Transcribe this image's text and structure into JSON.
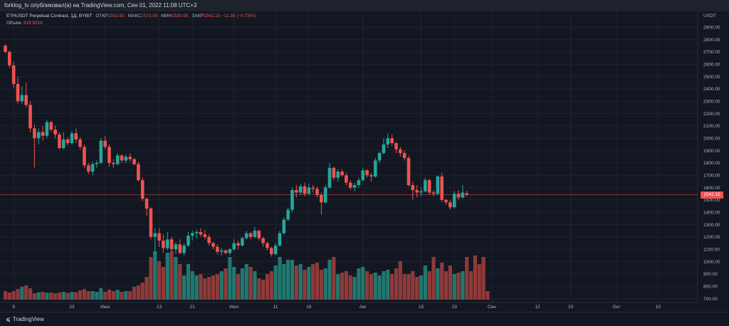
{
  "header": {
    "publisher": "forklog_tv опубликовал(а) на TradingView.com, Сен 01, 2022 11:08 UTC+3"
  },
  "legend": {
    "symbol": "ETHUSDT Perpetual Contract, 1Д, BYBIT",
    "open_label": "ОТКР",
    "open": "1553.50",
    "high_label": "МАКС",
    "high": "1573.00",
    "low_label": "МИН",
    "low": "1530.05",
    "close_label": "ЗАКР",
    "close": "1542.15",
    "change": "−11.35 (−0.73%)",
    "volume_label": "Объём",
    "volume": "419.901K"
  },
  "footer": {
    "brand": "TradingView"
  },
  "colors": {
    "up": "#26a69a",
    "down": "#ef5350",
    "background": "#131722",
    "grid": "#1f2330"
  },
  "chart_data": {
    "type": "candlestick",
    "title": "ETHUSDT Perpetual Contract, 1Д, BYBIT",
    "y_unit": "USDT",
    "y_range": [
      700,
      2950
    ],
    "y_ticks": [
      700,
      800,
      900,
      1000,
      1100,
      1200,
      1300,
      1400,
      1500,
      1600,
      1700,
      1800,
      1900,
      2000,
      2100,
      2200,
      2300,
      2400,
      2500,
      2600,
      2700,
      2800,
      2900
    ],
    "x_ticks": [
      {
        "label": "9",
        "idx": 2
      },
      {
        "label": "23",
        "idx": 16
      },
      {
        "label": "Июн",
        "idx": 24
      },
      {
        "label": "13",
        "idx": 37
      },
      {
        "label": "21",
        "idx": 45
      },
      {
        "label": "Июл",
        "idx": 55
      },
      {
        "label": "11",
        "idx": 65
      },
      {
        "label": "19",
        "idx": 73
      },
      {
        "label": "Авг",
        "idx": 86
      },
      {
        "label": "15",
        "idx": 100
      },
      {
        "label": "23",
        "idx": 108
      },
      {
        "label": "Сен",
        "idx": 117
      },
      {
        "label": "12",
        "idx": 128
      },
      {
        "label": "20",
        "idx": 136
      },
      {
        "label": "Окт",
        "idx": 147
      },
      {
        "label": "10",
        "idx": 157
      }
    ],
    "current_price": 1542.15,
    "ohlc": [
      [
        2750,
        2760,
        2690,
        2700
      ],
      [
        2700,
        2710,
        2570,
        2590
      ],
      [
        2590,
        2620,
        2410,
        2440
      ],
      [
        2440,
        2500,
        2280,
        2300
      ],
      [
        2300,
        2420,
        2280,
        2350
      ],
      [
        2350,
        2450,
        2250,
        2270
      ],
      [
        2270,
        2300,
        2050,
        2080
      ],
      [
        2080,
        2110,
        1760,
        2000
      ],
      [
        2000,
        2080,
        1950,
        2050
      ],
      [
        2050,
        2100,
        1980,
        2020
      ],
      [
        2020,
        2150,
        2000,
        2130
      ],
      [
        2130,
        2140,
        2050,
        2070
      ],
      [
        2070,
        2100,
        2000,
        2030
      ],
      [
        2030,
        2050,
        1910,
        1920
      ],
      [
        1920,
        2050,
        1910,
        1990
      ],
      [
        1990,
        2010,
        1940,
        1960
      ],
      [
        1960,
        2060,
        1950,
        2040
      ],
      [
        2040,
        2080,
        1960,
        1990
      ],
      [
        1990,
        2010,
        1910,
        1930
      ],
      [
        1930,
        1950,
        1760,
        1780
      ],
      [
        1780,
        1800,
        1710,
        1730
      ],
      [
        1730,
        1810,
        1700,
        1790
      ],
      [
        1790,
        1820,
        1760,
        1800
      ],
      [
        1800,
        2000,
        1790,
        1980
      ],
      [
        1980,
        2020,
        1910,
        1930
      ],
      [
        1930,
        1950,
        1770,
        1800
      ],
      [
        1800,
        1830,
        1760,
        1790
      ],
      [
        1790,
        1880,
        1780,
        1860
      ],
      [
        1860,
        1870,
        1800,
        1820
      ],
      [
        1820,
        1870,
        1800,
        1850
      ],
      [
        1850,
        1880,
        1810,
        1830
      ],
      [
        1830,
        1840,
        1780,
        1790
      ],
      [
        1790,
        1810,
        1650,
        1660
      ],
      [
        1660,
        1680,
        1490,
        1510
      ],
      [
        1510,
        1520,
        1370,
        1430
      ],
      [
        1430,
        1440,
        1180,
        1200
      ],
      [
        1200,
        1270,
        1050,
        1230
      ],
      [
        1230,
        1270,
        1120,
        1170
      ],
      [
        1170,
        1220,
        1070,
        1110
      ],
      [
        1110,
        1240,
        1090,
        1180
      ],
      [
        1180,
        1200,
        1080,
        1100
      ],
      [
        1100,
        1160,
        1060,
        1140
      ],
      [
        1140,
        1180,
        1060,
        1070
      ],
      [
        1070,
        1150,
        1050,
        1130
      ],
      [
        1130,
        1240,
        1120,
        1210
      ],
      [
        1210,
        1250,
        1170,
        1230
      ],
      [
        1230,
        1260,
        1190,
        1240
      ],
      [
        1240,
        1270,
        1200,
        1220
      ],
      [
        1220,
        1260,
        1180,
        1200
      ],
      [
        1200,
        1220,
        1130,
        1150
      ],
      [
        1150,
        1160,
        1100,
        1120
      ],
      [
        1120,
        1140,
        1060,
        1080
      ],
      [
        1080,
        1110,
        1050,
        1090
      ],
      [
        1090,
        1100,
        1060,
        1070
      ],
      [
        1070,
        1110,
        1050,
        1100
      ],
      [
        1100,
        1180,
        1090,
        1150
      ],
      [
        1150,
        1170,
        1100,
        1130
      ],
      [
        1130,
        1200,
        1120,
        1190
      ],
      [
        1190,
        1250,
        1180,
        1230
      ],
      [
        1230,
        1240,
        1180,
        1200
      ],
      [
        1200,
        1280,
        1190,
        1250
      ],
      [
        1250,
        1260,
        1170,
        1190
      ],
      [
        1190,
        1200,
        1120,
        1150
      ],
      [
        1150,
        1160,
        1090,
        1110
      ],
      [
        1110,
        1120,
        1040,
        1060
      ],
      [
        1060,
        1150,
        1050,
        1130
      ],
      [
        1130,
        1250,
        1120,
        1230
      ],
      [
        1230,
        1360,
        1220,
        1340
      ],
      [
        1340,
        1440,
        1330,
        1420
      ],
      [
        1420,
        1600,
        1400,
        1580
      ],
      [
        1580,
        1620,
        1520,
        1560
      ],
      [
        1560,
        1630,
        1540,
        1610
      ],
      [
        1610,
        1640,
        1530,
        1550
      ],
      [
        1550,
        1630,
        1540,
        1600
      ],
      [
        1600,
        1620,
        1560,
        1590
      ],
      [
        1590,
        1610,
        1520,
        1540
      ],
      [
        1540,
        1560,
        1380,
        1480
      ],
      [
        1480,
        1620,
        1470,
        1600
      ],
      [
        1600,
        1800,
        1590,
        1760
      ],
      [
        1760,
        1770,
        1660,
        1680
      ],
      [
        1680,
        1750,
        1650,
        1730
      ],
      [
        1730,
        1750,
        1690,
        1700
      ],
      [
        1700,
        1720,
        1620,
        1640
      ],
      [
        1640,
        1660,
        1580,
        1600
      ],
      [
        1600,
        1640,
        1570,
        1620
      ],
      [
        1620,
        1680,
        1600,
        1660
      ],
      [
        1660,
        1760,
        1650,
        1740
      ],
      [
        1740,
        1750,
        1680,
        1700
      ],
      [
        1700,
        1720,
        1650,
        1690
      ],
      [
        1690,
        1840,
        1680,
        1820
      ],
      [
        1820,
        1890,
        1800,
        1880
      ],
      [
        1880,
        2000,
        1870,
        1950
      ],
      [
        1950,
        2040,
        1920,
        2000
      ],
      [
        2000,
        2030,
        1940,
        1960
      ],
      [
        1960,
        1970,
        1880,
        1910
      ],
      [
        1910,
        1930,
        1850,
        1880
      ],
      [
        1880,
        1900,
        1820,
        1840
      ],
      [
        1840,
        1860,
        1610,
        1620
      ],
      [
        1620,
        1650,
        1500,
        1580
      ],
      [
        1580,
        1620,
        1520,
        1560
      ],
      [
        1560,
        1600,
        1530,
        1570
      ],
      [
        1570,
        1680,
        1560,
        1660
      ],
      [
        1660,
        1670,
        1540,
        1560
      ],
      [
        1560,
        1580,
        1530,
        1550
      ],
      [
        1550,
        1700,
        1540,
        1690
      ],
      [
        1690,
        1720,
        1480,
        1500
      ],
      [
        1500,
        1510,
        1460,
        1480
      ],
      [
        1480,
        1500,
        1420,
        1440
      ],
      [
        1440,
        1570,
        1430,
        1550
      ],
      [
        1550,
        1580,
        1500,
        1520
      ],
      [
        1520,
        1620,
        1510,
        1560
      ],
      [
        1553.5,
        1573,
        1530.05,
        1542.15
      ]
    ],
    "volume": [
      60,
      50,
      60,
      75,
      90,
      100,
      80,
      45,
      52,
      55,
      48,
      50,
      45,
      50,
      55,
      48,
      55,
      52,
      65,
      75,
      60,
      60,
      55,
      80,
      55,
      70,
      60,
      70,
      55,
      60,
      60,
      90,
      100,
      120,
      160,
      300,
      340,
      270,
      230,
      330,
      340,
      300,
      250,
      170,
      250,
      200,
      170,
      180,
      150,
      160,
      170,
      180,
      200,
      220,
      300,
      230,
      180,
      220,
      250,
      230,
      200,
      150,
      140,
      180,
      200,
      240,
      300,
      250,
      280,
      280,
      240,
      250,
      210,
      230,
      250,
      260,
      210,
      220,
      280,
      300,
      180,
      190,
      200,
      170,
      160,
      220,
      230,
      200,
      180,
      190,
      170,
      200,
      210,
      180,
      220,
      270,
      180,
      180,
      200,
      160,
      170,
      240,
      200,
      300,
      220,
      260,
      200,
      240,
      180,
      190,
      200,
      300,
      200,
      310,
      250,
      300,
      60
    ]
  }
}
